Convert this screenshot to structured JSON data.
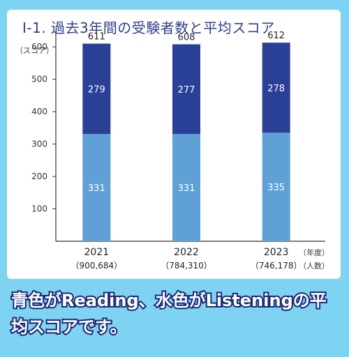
{
  "title": "Ⅰ-1. 過去3年間の受験者数と平均スコア",
  "caption": "青色がReading、水色がListeningの平均スコアです。",
  "colors": {
    "reading": "#2a3f96",
    "listening": "#5fa0d6",
    "axis": "#333333",
    "background": "#7fd3f2"
  },
  "chart_data": {
    "type": "bar",
    "stacked": true,
    "y_unit_label": "（スコア）",
    "x_unit_label": "（年度）",
    "sub_unit_label": "（人数）",
    "categories": [
      "2021",
      "2022",
      "2023"
    ],
    "examinees": [
      "（900,684）",
      "（784,310）",
      "（746,178）"
    ],
    "totals": [
      611,
      608,
      612
    ],
    "series": [
      {
        "values": [
          331,
          331,
          335
        ],
        "color": "#5fa0d6"
      },
      {
        "values": [
          279,
          277,
          278
        ],
        "color": "#2a3f96"
      }
    ],
    "ylim": [
      0,
      650
    ],
    "yticks": [
      100,
      200,
      300,
      400,
      500,
      600
    ],
    "grid": false
  }
}
